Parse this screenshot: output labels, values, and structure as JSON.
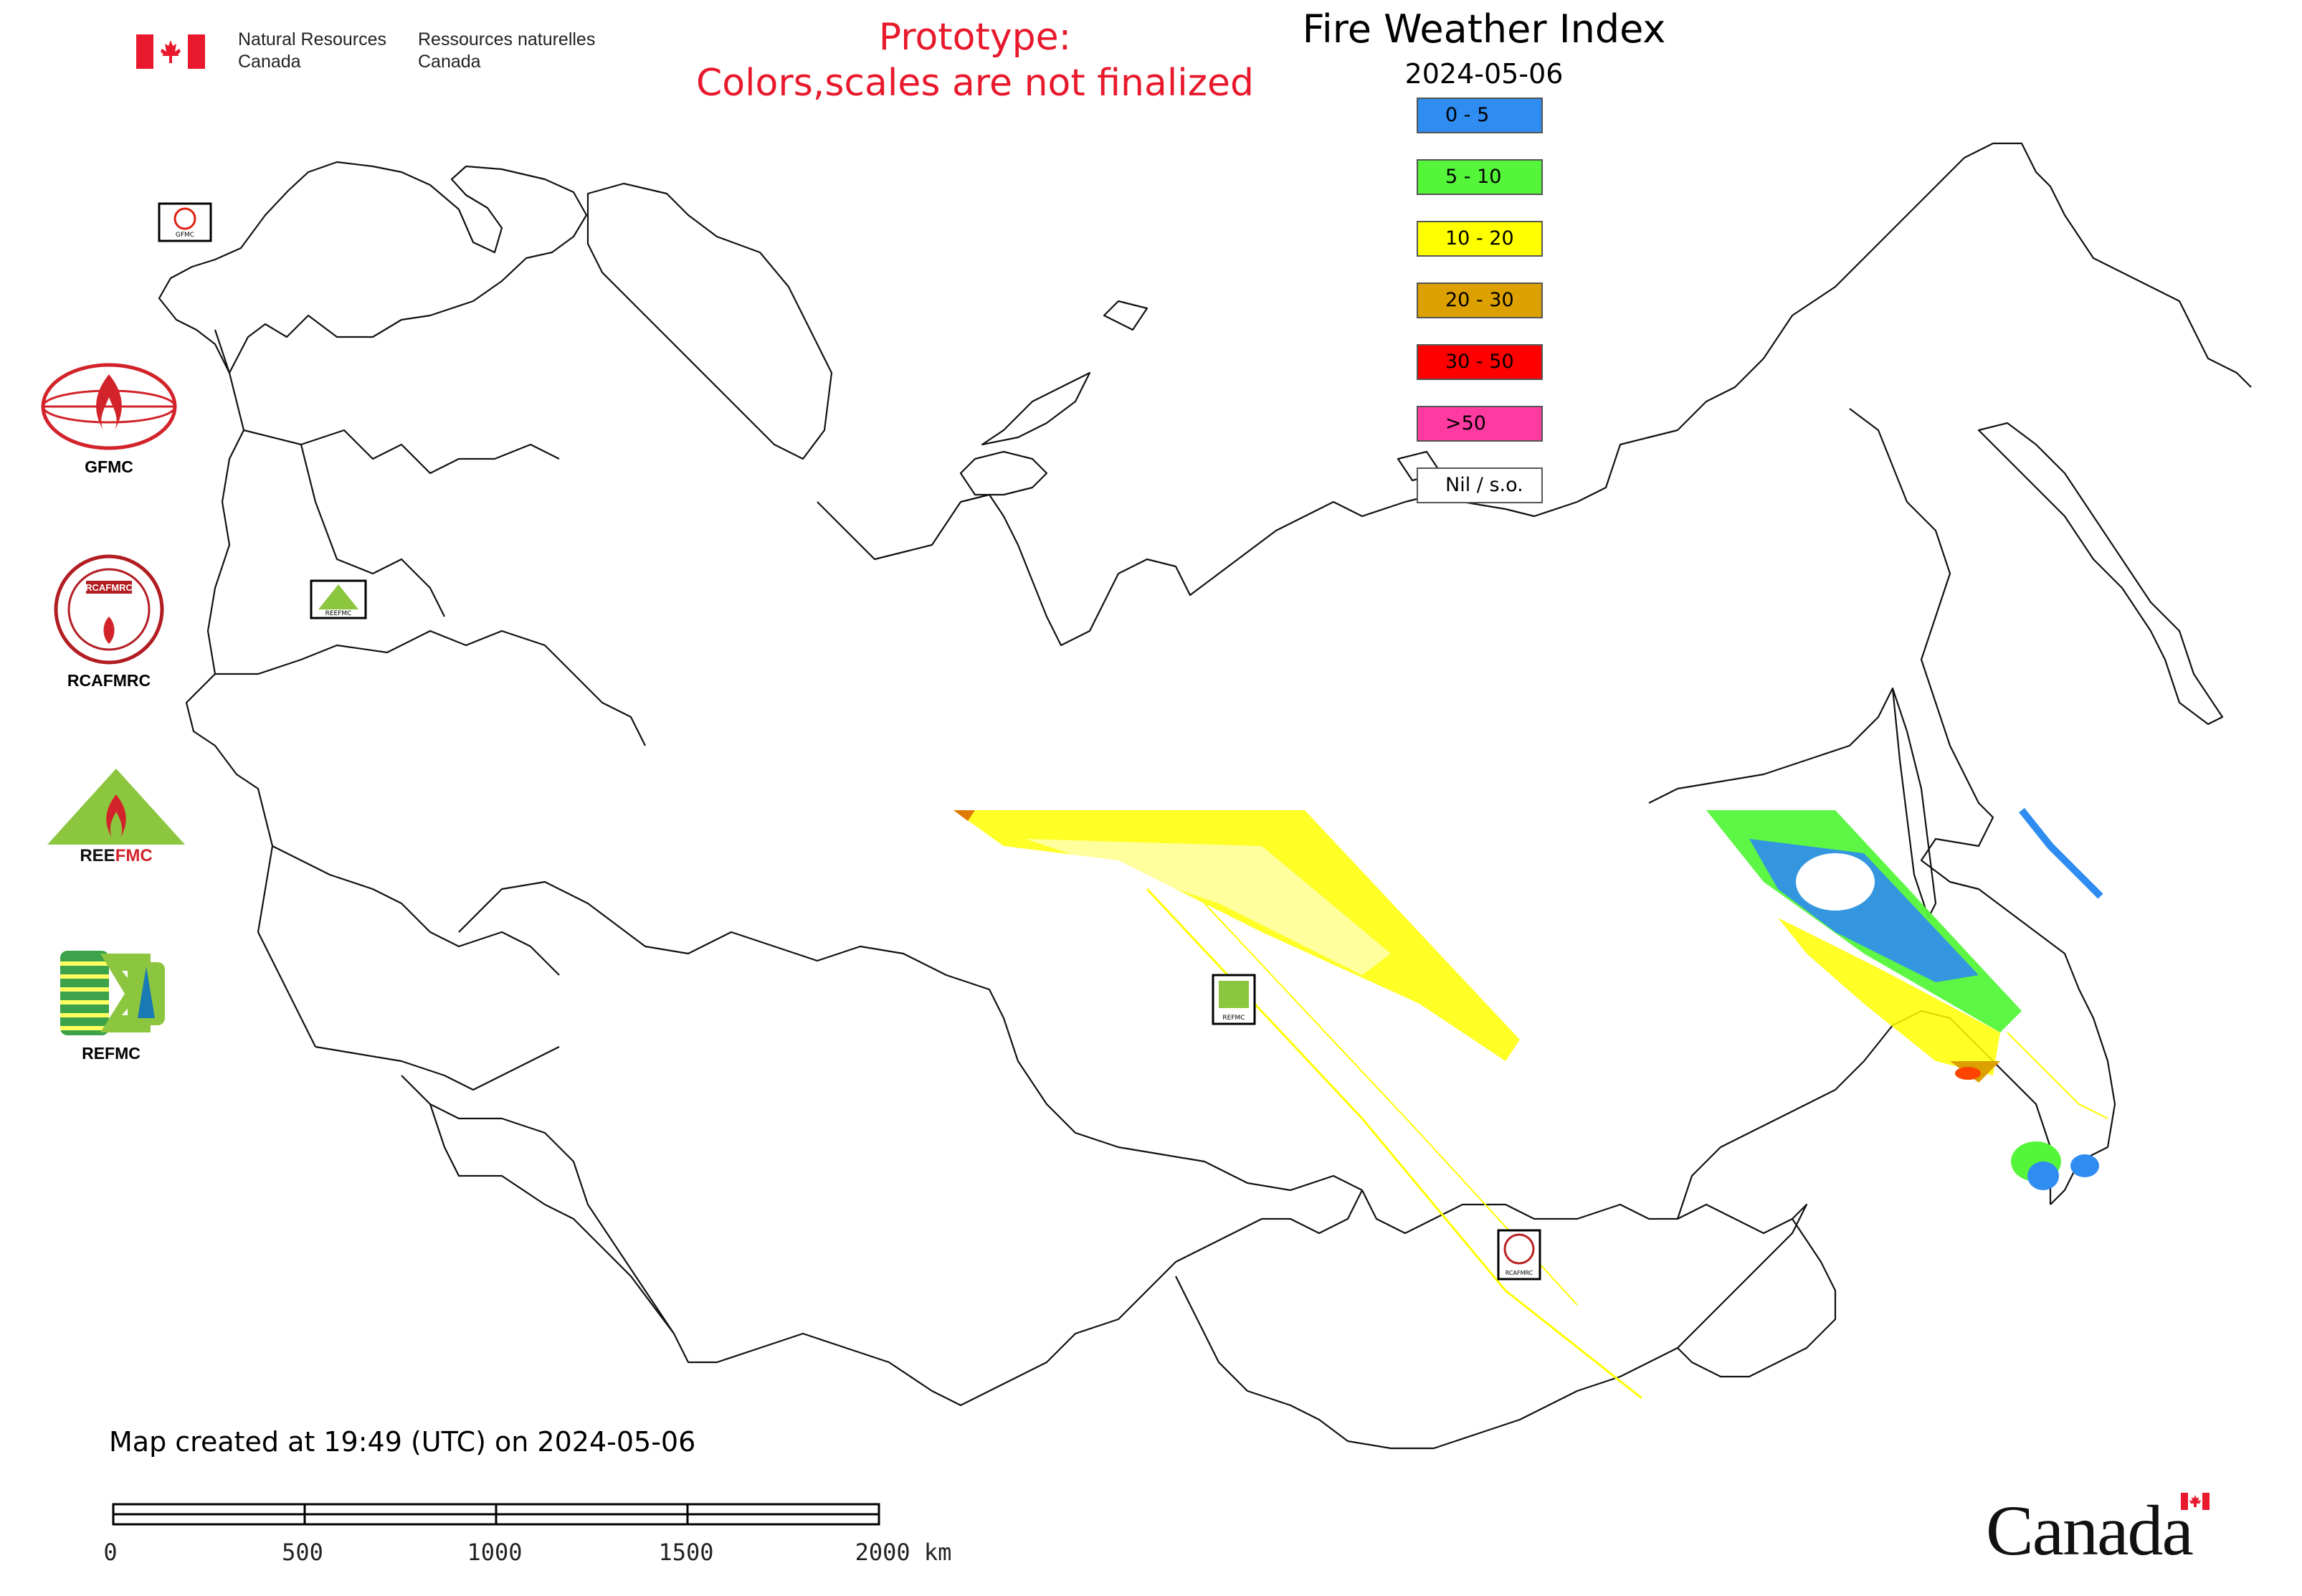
{
  "header": {
    "department_en_line1": "Natural Resources",
    "department_en_line2": "Canada",
    "department_fr_line1": "Ressources naturelles",
    "department_fr_line2": "Canada",
    "prototype_line1": "Prototype:",
    "prototype_line2": "Colors,scales are not finalized",
    "prototype_color": "#e8192c"
  },
  "map": {
    "title": "Fire Weather Index",
    "date": "2024-05-06",
    "legend": [
      {
        "label": "0 - 5",
        "color": "#2f8cf0"
      },
      {
        "label": "5 - 10",
        "color": "#55f53a"
      },
      {
        "label": "10 - 20",
        "color": "#ffff00"
      },
      {
        "label": "20 - 30",
        "color": "#dca000"
      },
      {
        "label": "30 - 50",
        "color": "#ff0000"
      },
      {
        "label": ">50",
        "color": "#ff3aa0"
      },
      {
        "label": "Nil / s.o.",
        "color": "#ffffff"
      }
    ],
    "station_markers": [
      {
        "label": "GFMC"
      },
      {
        "label": "REEFMC"
      },
      {
        "label": "REFMC"
      },
      {
        "label": "RCAFMRC"
      }
    ]
  },
  "partners": [
    {
      "name": "GFMC",
      "icon": "gfmc-logo"
    },
    {
      "name": "RCAFMRC",
      "icon": "rcafmrc-logo"
    },
    {
      "name": "REEFMC",
      "icon": "reefmc-logo"
    },
    {
      "name": "REFMC",
      "icon": "refmc-logo"
    }
  ],
  "footer": {
    "created_text": "Map created at 19:49 (UTC) on 2024-05-06",
    "scale_labels": [
      "0",
      "500",
      "1000",
      "1500",
      "2000 km"
    ],
    "wordmark": "Canada"
  }
}
